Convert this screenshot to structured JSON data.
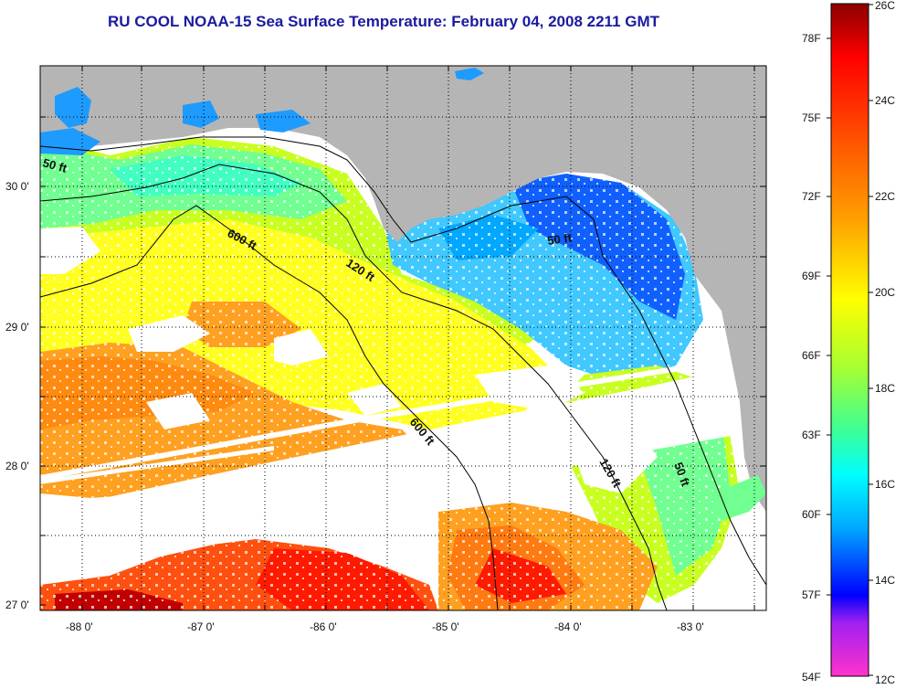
{
  "title": "RU COOL  NOAA-15  Sea Surface Temperature:  February 04, 2008 2211 GMT",
  "map": {
    "lat_labels": [
      "30 0'",
      "29 0'",
      "28 0'",
      "27 0'"
    ],
    "lon_labels": [
      "-88 0'",
      "-87 0'",
      "-86 0'",
      "-85 0'",
      "-84 0'",
      "-83 0'"
    ],
    "contour_labels": [
      "50 ft",
      "600 ft",
      "120 ft",
      "50 ft",
      "600 ft",
      "120 ft",
      "50 ft"
    ],
    "colors": {
      "land": "#b5b5b5",
      "clouds": "#ffffff",
      "frame": "#000000"
    }
  },
  "colorbar": {
    "f_labels": [
      "78F",
      "75F",
      "72F",
      "69F",
      "66F",
      "63F",
      "60F",
      "57F",
      "54F"
    ],
    "c_labels": [
      "26C",
      "24C",
      "22C",
      "20C",
      "18C",
      "16C",
      "14C",
      "12C"
    ],
    "range_c": [
      12,
      26
    ],
    "colors": [
      "#ff33cc",
      "#a020f0",
      "#0000ff",
      "#00a0ff",
      "#00ffff",
      "#40ff80",
      "#c8ff00",
      "#ffff00",
      "#ffa000",
      "#ff5000",
      "#ff0000",
      "#8b0000"
    ]
  }
}
